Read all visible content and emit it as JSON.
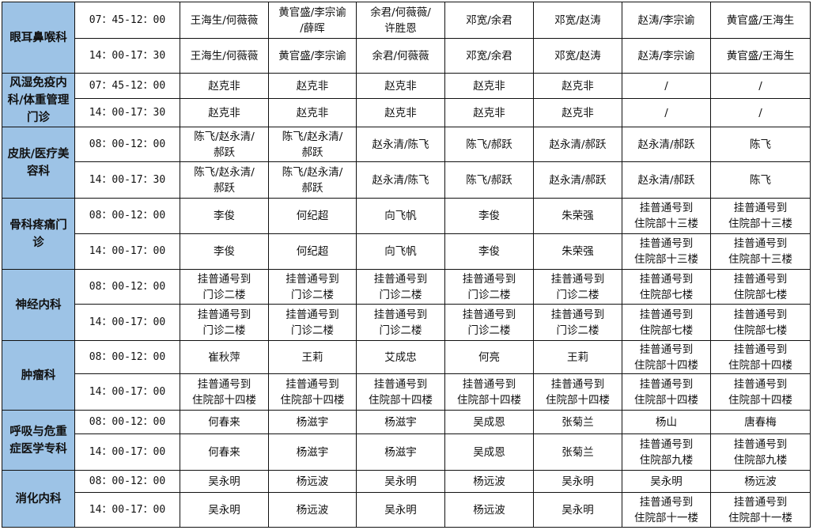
{
  "colors": {
    "dept_bg": "#9dc3e6",
    "border": "#111111"
  },
  "departments": [
    {
      "name": "眼耳鼻喉科",
      "rows": [
        {
          "time": "07：45-12：00",
          "cells": [
            "王海生/何薇薇",
            "黄官盛/李宗谕\n/薛晖",
            "余君/何薇薇/\n许胜恩",
            "邓宽/余君",
            "邓宽/赵涛",
            "赵涛/李宗谕",
            "黄官盛/王海生"
          ]
        },
        {
          "time": "14：00-17：30",
          "cells": [
            "王海生/何薇薇",
            "黄官盛/李宗谕",
            "余君/何薇薇",
            "邓宽/余君",
            "邓宽/赵涛",
            "赵涛/李宗谕",
            "黄官盛/王海生"
          ]
        }
      ]
    },
    {
      "name": "风湿免疫内科/体重管理门诊",
      "rows": [
        {
          "time": "07：45-12：00",
          "cells": [
            "赵克非",
            "赵克非",
            "赵克非",
            "赵克非",
            "赵克非",
            "/",
            "/"
          ]
        },
        {
          "time": "14：00-17：30",
          "cells": [
            "赵克非",
            "赵克非",
            "赵克非",
            "赵克非",
            "赵克非",
            "/",
            "/"
          ]
        }
      ]
    },
    {
      "name": "皮肤/医疗美容科",
      "rows": [
        {
          "time": "08：00-12：00",
          "cells": [
            "陈飞/赵永清/\n郝跃",
            "陈飞/赵永清/\n郝跃",
            "赵永清/陈飞",
            "陈飞/郝跃",
            "赵永清/郝跃",
            "赵永清/郝跃",
            "陈飞"
          ]
        },
        {
          "time": "14：00-17：30",
          "cells": [
            "陈飞/赵永清/\n郝跃",
            "陈飞/赵永清/\n郝跃",
            "赵永清/陈飞",
            "陈飞/郝跃",
            "赵永清/郝跃",
            "赵永清/郝跃",
            "陈飞"
          ]
        }
      ]
    },
    {
      "name": "骨科疼痛门诊",
      "rows": [
        {
          "time": "08：00-12：00",
          "cells": [
            "李俊",
            "何纪超",
            "向飞帆",
            "李俊",
            "朱荣强",
            "挂普通号到\n住院部十三楼",
            "挂普通号到\n住院部十三楼"
          ]
        },
        {
          "time": "14：00-17：00",
          "cells": [
            "李俊",
            "何纪超",
            "向飞帆",
            "李俊",
            "朱荣强",
            "挂普通号到\n住院部十三楼",
            "挂普通号到\n住院部十三楼"
          ]
        }
      ]
    },
    {
      "name": "神经内科",
      "rows": [
        {
          "time": "08：00-12：00",
          "cells": [
            "挂普通号到\n门诊二楼",
            "挂普通号到\n门诊二楼",
            "挂普通号到\n门诊二楼",
            "挂普通号到\n门诊二楼",
            "挂普通号到\n门诊二楼",
            "挂普通号到\n住院部七楼",
            "挂普通号到\n住院部七楼"
          ]
        },
        {
          "time": "14：00-17：00",
          "cells": [
            "挂普通号到\n门诊二楼",
            "挂普通号到\n门诊二楼",
            "挂普通号到\n门诊二楼",
            "挂普通号到\n门诊二楼",
            "挂普通号到\n门诊二楼",
            "挂普通号到\n住院部七楼",
            "挂普通号到\n住院部七楼"
          ]
        }
      ]
    },
    {
      "name": "肿瘤科",
      "rows": [
        {
          "time": "08：00-12：00",
          "cells": [
            "崔秋萍",
            "王莉",
            "艾成忠",
            "何亮",
            "王莉",
            "挂普通号到\n住院部十四楼",
            "挂普通号到\n住院部十四楼"
          ]
        },
        {
          "time": "14：00-17：00",
          "cells": [
            "挂普通号到\n住院部十四楼",
            "挂普通号到\n住院部十四楼",
            "挂普通号到\n住院部十四楼",
            "挂普通号到\n住院部十四楼",
            "挂普通号到\n住院部十四楼",
            "挂普通号到\n住院部十四楼",
            "挂普通号到\n住院部十四楼"
          ]
        }
      ]
    },
    {
      "name": "呼吸与危重症医学专科",
      "rows": [
        {
          "time": "08：00-12：00",
          "cells": [
            "何春来",
            "杨滋宇",
            "杨滋宇",
            "吴成恩",
            "张菊兰",
            "杨山",
            "唐春梅"
          ]
        },
        {
          "time": "14：00-17：00",
          "cells": [
            "何春来",
            "杨滋宇",
            "杨滋宇",
            "吴成恩",
            "张菊兰",
            "挂普通号到\n住院部九楼",
            "挂普通号到\n住院部九楼"
          ]
        }
      ]
    },
    {
      "name": "消化内科",
      "rows": [
        {
          "time": "08：00-12：00",
          "cells": [
            "吴永明",
            "杨远波",
            "吴永明",
            "杨远波",
            "吴永明",
            "吴永明",
            "杨远波"
          ]
        },
        {
          "time": "14：00-17：00",
          "cells": [
            "吴永明",
            "杨远波",
            "吴永明",
            "杨远波",
            "吴永明",
            "挂普通号到\n住院部十一楼",
            "挂普通号到\n住院部十一楼"
          ]
        }
      ]
    }
  ]
}
